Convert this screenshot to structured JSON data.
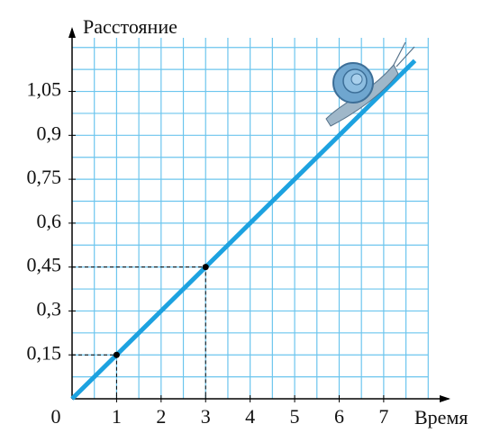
{
  "chart_data": {
    "type": "line",
    "x_label": "Время",
    "y_label": "Расстояние",
    "series": [
      {
        "color": "#1da2e0",
        "x": [
          0,
          7.7
        ],
        "values": [
          0,
          1.155
        ]
      }
    ],
    "points": {
      "color": "#000000",
      "x": [
        1,
        3
      ],
      "values": [
        0.15,
        0.45
      ]
    },
    "xlim": [
      0,
      8.5
    ],
    "ylim": [
      0,
      1.27
    ],
    "xticks": [
      0,
      1,
      2,
      3,
      4,
      5,
      6,
      7
    ],
    "yticks": [
      {
        "value": 0.15,
        "label": "0,15"
      },
      {
        "value": 0.3,
        "label": "0,3"
      },
      {
        "value": 0.45,
        "label": "0,45"
      },
      {
        "value": 0.6,
        "label": "0,6"
      },
      {
        "value": 0.75,
        "label": "0,75"
      },
      {
        "value": 0.9,
        "label": "0,9"
      },
      {
        "value": 1.05,
        "label": "1,05"
      }
    ],
    "grid": true,
    "grid_color": "#6cc5ee"
  }
}
